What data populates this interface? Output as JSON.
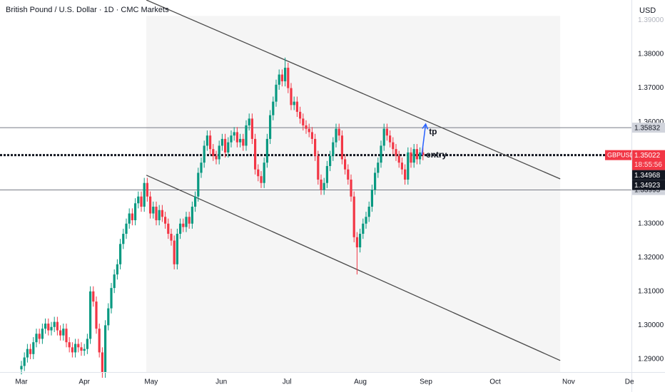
{
  "chart_data": {
    "type": "candlestick",
    "title": "British Pound / U.S. Dollar · 1D · CMC Markets",
    "currency": "USD",
    "up_color": "#089981",
    "down_color": "#f23645",
    "grid": false,
    "xlim": [
      -7.14,
      203.57
    ],
    "xticks": [
      {
        "value": 0,
        "label": "Mar"
      },
      {
        "value": 21,
        "label": "Apr"
      },
      {
        "value": 43.3,
        "label": "May"
      },
      {
        "value": 66.7,
        "label": "Jun"
      },
      {
        "value": 88.6,
        "label": "Jul"
      },
      {
        "value": 113.1,
        "label": "Aug"
      },
      {
        "value": 135,
        "label": "Sep"
      },
      {
        "value": 158.1,
        "label": "Oct"
      },
      {
        "value": 182.6,
        "label": "Nov"
      },
      {
        "value": 202.9,
        "label": "De"
      }
    ],
    "ylim": [
      1.2862,
      1.396
    ],
    "yticks": [
      {
        "value": 1.29,
        "label": "1.29000"
      },
      {
        "value": 1.3,
        "label": "1.30000"
      },
      {
        "value": 1.31,
        "label": "1.31000"
      },
      {
        "value": 1.32,
        "label": "1.32000"
      },
      {
        "value": 1.33,
        "label": "1.33000"
      },
      {
        "value": 1.34,
        "label": "1.34000"
      },
      {
        "value": 1.35,
        "label": "1.35000"
      },
      {
        "value": 1.36,
        "label": "1.36000"
      },
      {
        "value": 1.37,
        "label": "1.37000"
      },
      {
        "value": 1.38,
        "label": "1.38000"
      },
      {
        "value": 1.39,
        "label": "1.39000"
      }
    ],
    "open": [
      1.287,
      1.288,
      1.2905,
      1.293,
      1.2915,
      1.295,
      1.2975,
      1.296,
      1.299,
      1.3005,
      1.2985,
      1.2995,
      1.301,
      1.2985,
      1.297,
      1.299,
      1.295,
      1.2935,
      1.292,
      1.2945,
      1.2935,
      1.2925,
      1.293,
      1.296,
      1.31,
      1.307,
      1.299,
      1.292,
      1.286,
      1.3,
      1.305,
      1.311,
      1.315,
      1.318,
      1.324,
      1.327,
      1.33,
      1.333,
      1.331,
      1.336,
      1.338,
      1.335,
      1.342,
      1.338,
      1.333,
      1.335,
      1.331,
      1.334,
      1.332,
      1.33,
      1.327,
      1.325,
      1.318,
      1.327,
      1.33,
      1.329,
      1.332,
      1.33,
      1.335,
      1.338,
      1.345,
      1.348,
      1.353,
      1.356,
      1.352,
      1.35,
      1.349,
      1.353,
      1.355,
      1.351,
      1.354,
      1.356,
      1.357,
      1.354,
      1.355,
      1.353,
      1.359,
      1.361,
      1.355,
      1.346,
      1.344,
      1.342,
      1.348,
      1.355,
      1.362,
      1.366,
      1.371,
      1.374,
      1.372,
      1.376,
      1.37,
      1.365,
      1.366,
      1.363,
      1.361,
      1.359,
      1.358,
      1.357,
      1.355,
      1.35,
      1.343,
      1.34,
      1.342,
      1.347,
      1.35,
      1.354,
      1.358,
      1.356,
      1.349,
      1.346,
      1.343,
      1.338,
      1.326,
      1.323,
      1.327,
      1.33,
      1.332,
      1.335,
      1.34,
      1.345,
      1.348,
      1.353,
      1.358,
      1.356,
      1.354,
      1.352,
      1.35,
      1.348,
      1.346,
      1.343,
      1.351,
      1.348,
      1.352,
      1.349,
      1.351
    ],
    "high": [
      1.2895,
      1.292,
      1.2945,
      1.2945,
      1.2965,
      1.299,
      1.299,
      1.3005,
      1.302,
      1.302,
      1.301,
      1.3025,
      1.3025,
      1.3,
      1.3005,
      1.3005,
      1.2965,
      1.295,
      1.296,
      1.296,
      1.295,
      1.2945,
      1.2975,
      1.3115,
      1.3115,
      1.3085,
      1.3005,
      1.2935,
      1.3015,
      1.3065,
      1.3125,
      1.3165,
      1.3195,
      1.3255,
      1.3285,
      1.3315,
      1.3345,
      1.3345,
      1.3375,
      1.3395,
      1.3395,
      1.3435,
      1.3435,
      1.3395,
      1.3365,
      1.3365,
      1.3355,
      1.3355,
      1.3335,
      1.3315,
      1.3285,
      1.3265,
      1.3285,
      1.3315,
      1.3315,
      1.3335,
      1.3335,
      1.3365,
      1.3395,
      1.3465,
      1.3495,
      1.3545,
      1.3575,
      1.3575,
      1.3535,
      1.3515,
      1.3545,
      1.3565,
      1.3565,
      1.3555,
      1.3575,
      1.3585,
      1.3585,
      1.3565,
      1.3565,
      1.3605,
      1.3625,
      1.3625,
      1.3565,
      1.3475,
      1.3455,
      1.3495,
      1.3565,
      1.3635,
      1.3675,
      1.3725,
      1.3755,
      1.3755,
      1.379,
      1.3775,
      1.3715,
      1.3675,
      1.3675,
      1.3645,
      1.3625,
      1.3605,
      1.3595,
      1.3585,
      1.3565,
      1.3515,
      1.3445,
      1.3435,
      1.3485,
      1.3515,
      1.3555,
      1.3595,
      1.3595,
      1.3575,
      1.3505,
      1.3475,
      1.3445,
      1.3395,
      1.3275,
      1.3285,
      1.3315,
      1.3335,
      1.3365,
      1.3415,
      1.3465,
      1.3495,
      1.3545,
      1.3595,
      1.3595,
      1.3575,
      1.3555,
      1.3535,
      1.3515,
      1.3495,
      1.3475,
      1.3525,
      1.3525,
      1.3535,
      1.3535,
      1.3525,
      1.3525
    ],
    "low": [
      1.2855,
      1.2865,
      1.289,
      1.29,
      1.29,
      1.2935,
      1.2945,
      1.2945,
      1.2975,
      1.297,
      1.297,
      1.298,
      1.297,
      1.2955,
      1.2955,
      1.2935,
      1.292,
      1.2905,
      1.2905,
      1.292,
      1.291,
      1.291,
      1.2915,
      1.2945,
      1.3055,
      1.2975,
      1.2905,
      1.2845,
      1.2845,
      1.2985,
      1.3035,
      1.3095,
      1.3135,
      1.3165,
      1.3225,
      1.3255,
      1.3285,
      1.3295,
      1.3295,
      1.3345,
      1.3335,
      1.3335,
      1.3365,
      1.3315,
      1.3315,
      1.3295,
      1.3295,
      1.3305,
      1.3285,
      1.3255,
      1.3235,
      1.3165,
      1.3165,
      1.3255,
      1.3275,
      1.3275,
      1.3285,
      1.3285,
      1.3335,
      1.3365,
      1.3435,
      1.3465,
      1.3515,
      1.3505,
      1.3485,
      1.3475,
      1.3475,
      1.3515,
      1.3495,
      1.3495,
      1.3525,
      1.3545,
      1.3525,
      1.3525,
      1.3515,
      1.3515,
      1.3575,
      1.3535,
      1.3445,
      1.3425,
      1.3405,
      1.3405,
      1.3465,
      1.3535,
      1.3605,
      1.3645,
      1.3695,
      1.3705,
      1.3705,
      1.3685,
      1.3635,
      1.3635,
      1.3615,
      1.3595,
      1.3575,
      1.3565,
      1.3555,
      1.3535,
      1.3485,
      1.3415,
      1.3385,
      1.3385,
      1.3405,
      1.3455,
      1.3485,
      1.3525,
      1.3545,
      1.3475,
      1.3445,
      1.3415,
      1.3365,
      1.3245,
      1.315,
      1.3215,
      1.3255,
      1.3285,
      1.3305,
      1.3335,
      1.3385,
      1.3435,
      1.3465,
      1.3515,
      1.3545,
      1.3525,
      1.3505,
      1.3485,
      1.3465,
      1.3445,
      1.3415,
      1.3415,
      1.3465,
      1.3465,
      1.3475,
      1.3475,
      1.3487
    ],
    "close": [
      1.288,
      1.2905,
      1.293,
      1.2915,
      1.295,
      1.2975,
      1.296,
      1.299,
      1.3005,
      1.2985,
      1.2995,
      1.301,
      1.2985,
      1.297,
      1.299,
      1.295,
      1.2935,
      1.292,
      1.2945,
      1.2935,
      1.2925,
      1.293,
      1.296,
      1.31,
      1.307,
      1.299,
      1.292,
      1.286,
      1.3,
      1.305,
      1.311,
      1.315,
      1.318,
      1.324,
      1.327,
      1.33,
      1.333,
      1.331,
      1.336,
      1.338,
      1.335,
      1.342,
      1.338,
      1.333,
      1.335,
      1.331,
      1.334,
      1.332,
      1.33,
      1.327,
      1.325,
      1.318,
      1.327,
      1.33,
      1.329,
      1.332,
      1.33,
      1.335,
      1.338,
      1.345,
      1.348,
      1.353,
      1.356,
      1.352,
      1.35,
      1.349,
      1.353,
      1.355,
      1.351,
      1.354,
      1.356,
      1.357,
      1.354,
      1.355,
      1.353,
      1.359,
      1.361,
      1.355,
      1.346,
      1.344,
      1.342,
      1.348,
      1.355,
      1.362,
      1.366,
      1.371,
      1.374,
      1.372,
      1.376,
      1.37,
      1.365,
      1.366,
      1.363,
      1.361,
      1.359,
      1.358,
      1.357,
      1.355,
      1.35,
      1.343,
      1.34,
      1.342,
      1.347,
      1.35,
      1.354,
      1.358,
      1.356,
      1.349,
      1.346,
      1.343,
      1.338,
      1.326,
      1.323,
      1.327,
      1.33,
      1.332,
      1.335,
      1.34,
      1.345,
      1.348,
      1.353,
      1.358,
      1.356,
      1.354,
      1.352,
      1.35,
      1.348,
      1.346,
      1.343,
      1.351,
      1.348,
      1.352,
      1.349,
      1.351,
      1.3502
    ],
    "rectangle": {
      "x": [
        41.7,
        179.8
      ],
      "y": [
        1.2862,
        1.3913
      ],
      "color": "#f5f5f5"
    },
    "channel": {
      "color": "#4a4a4a",
      "upper": {
        "x": [
          41.7,
          179.8
        ],
        "y": [
          1.396,
          1.3432
        ]
      },
      "lower": {
        "x": [
          41.7,
          179.8
        ],
        "y": [
          1.3443,
          1.2896
        ]
      }
    },
    "horizontal_lines": [
      1.35832,
      1.33993
    ],
    "current_price": {
      "symbol": "GBPUSD",
      "value": 1.35022,
      "countdown": "18:55:56",
      "color": "#f23645"
    },
    "price_labels": [
      1.34968,
      1.34923
    ],
    "arrow": {
      "x": [
        133.6,
        134.9
      ],
      "y": [
        1.3502,
        1.3594
      ],
      "color": "#2962ff"
    },
    "annotations": [
      {
        "text": "tp",
        "x": 136,
        "y": 1.357
      },
      {
        "text": "entry",
        "x": 135,
        "y": 1.3502
      }
    ]
  }
}
